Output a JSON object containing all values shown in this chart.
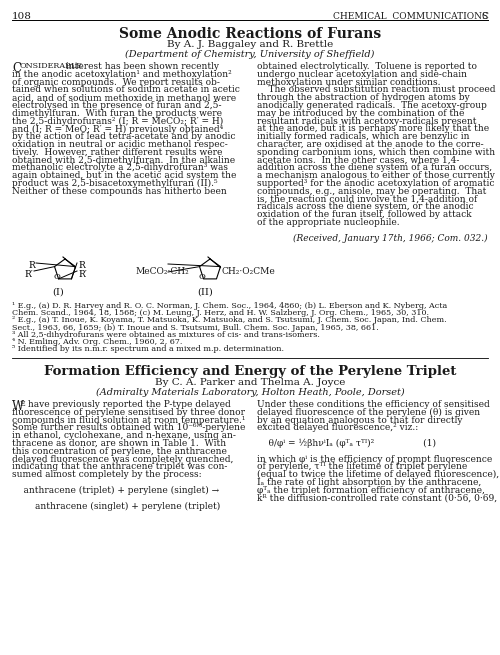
{
  "page_number": "108",
  "journal_name": "Chemical Communications",
  "section1_title": "Some Anodic Reactions of Furans",
  "section1_authors": "By A. J. Baggaley and R. Brettle",
  "section1_affiliation": "(Department of Chemistry, University of Sheffield)",
  "section2_title": "Formation Efficiency and Energy of the Perylene Triplet",
  "section2_authors": "By C. A. Parker and Thelma A. Joyce",
  "section2_affiliation": "(Admiralty Materials Laboratory, Holton Heath, Poole, Dorset)",
  "bg_color": "#ffffff",
  "text_color": "#1a1a1a",
  "line_color": "#000000"
}
